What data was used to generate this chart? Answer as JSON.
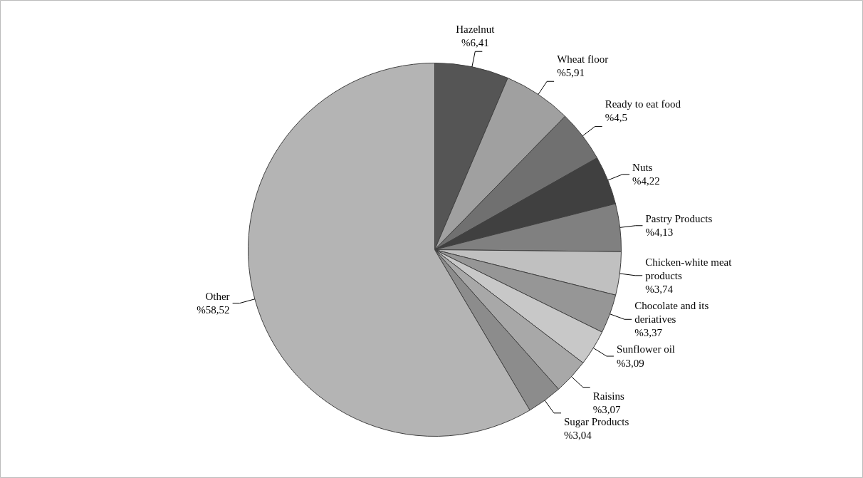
{
  "chart_data": {
    "type": "pie",
    "categories": [
      "Hazelnut",
      "Wheat floor",
      "Ready to eat food",
      "Nuts",
      "Pastry Products",
      "Chicken-white meat products",
      "Chocolate and its deriatives",
      "Sunflower oil",
      "Raisins",
      "Sugar Products",
      "Other"
    ],
    "values": [
      6.41,
      5.91,
      4.5,
      4.22,
      4.13,
      3.74,
      3.37,
      3.09,
      3.07,
      3.04,
      58.52
    ],
    "value_labels": [
      "%6,41",
      "%5,91",
      "%4,5",
      "%4,22",
      "%4,13",
      "%3,74",
      "%3,37",
      "%3,09",
      "%3,07",
      "%3,04",
      "%58,52"
    ],
    "colors": [
      "#555555",
      "#a0a0a0",
      "#707070",
      "#404040",
      "#808080",
      "#c0c0c0",
      "#969696",
      "#c8c8c8",
      "#a8a8a8",
      "#8c8c8c",
      "#b4b4b4"
    ]
  }
}
